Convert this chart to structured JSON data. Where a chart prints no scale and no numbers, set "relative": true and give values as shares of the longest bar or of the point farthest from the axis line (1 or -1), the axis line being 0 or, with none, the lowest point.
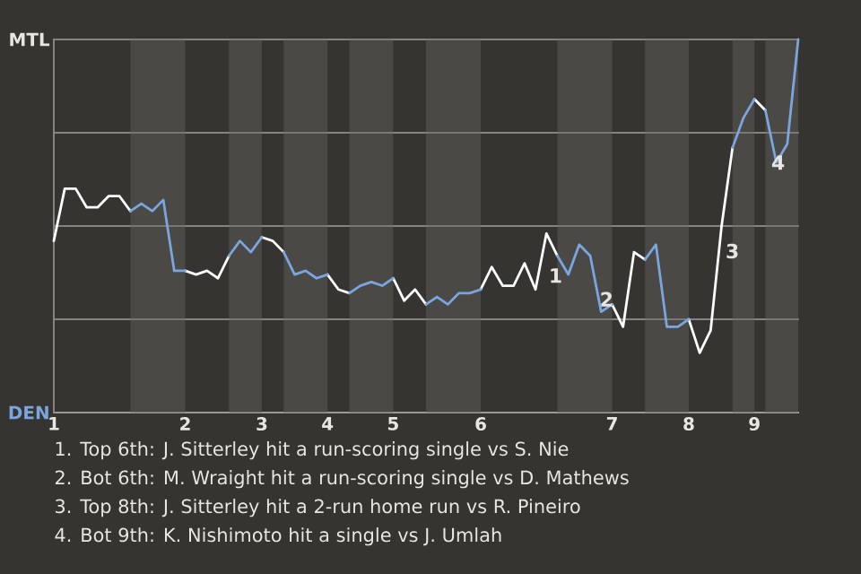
{
  "chart_data": {
    "type": "line",
    "relative": true,
    "grid": "y",
    "categories": [
      "1",
      null,
      null,
      null,
      null,
      null,
      null,
      null,
      null,
      null,
      null,
      null,
      "2",
      null,
      null,
      null,
      null,
      null,
      null,
      "3",
      null,
      null,
      null,
      null,
      null,
      "4",
      null,
      null,
      null,
      null,
      null,
      "5",
      null,
      null,
      null,
      null,
      null,
      null,
      null,
      "6",
      null,
      null,
      null,
      null,
      null,
      null,
      null,
      null,
      null,
      null,
      null,
      "7",
      null,
      null,
      null,
      null,
      null,
      null,
      "8",
      null,
      null,
      null,
      null,
      null,
      "9",
      null,
      null,
      null,
      null
    ],
    "series": [
      {
        "color": "#ffffff",
        "values": [
          0.46,
          0.6,
          0.6,
          0.55,
          0.55,
          0.58,
          0.58,
          0.54,
          null,
          null,
          null,
          null,
          0.38,
          0.37,
          0.38,
          0.36,
          0.42,
          null,
          null,
          0.47,
          0.46,
          0.43,
          null,
          null,
          null,
          0.37,
          0.33,
          0.32,
          null,
          null,
          null,
          0.36,
          0.3,
          0.33,
          0.29,
          null,
          null,
          null,
          null,
          0.33,
          0.39,
          0.34,
          0.34,
          0.4,
          0.33,
          0.48,
          0.42,
          null,
          null,
          null,
          null,
          0.29,
          0.23,
          0.43,
          0.41,
          null,
          null,
          null,
          0.25,
          0.16,
          0.22,
          0.5,
          0.71,
          null,
          0.84,
          0.81,
          null,
          null,
          null
        ]
      },
      {
        "color": "#7aa6e0",
        "values": [
          null,
          null,
          null,
          null,
          null,
          null,
          null,
          0.54,
          0.56,
          0.54,
          0.57,
          0.38,
          0.38,
          null,
          null,
          null,
          0.42,
          0.46,
          0.43,
          0.47,
          null,
          0.43,
          0.37,
          0.38,
          0.36,
          0.37,
          null,
          0.32,
          0.34,
          0.35,
          0.34,
          0.36,
          null,
          null,
          0.29,
          0.31,
          0.29,
          0.32,
          0.32,
          0.33,
          null,
          null,
          null,
          null,
          null,
          null,
          0.42,
          0.37,
          0.45,
          0.42,
          0.27,
          0.29,
          null,
          null,
          0.41,
          0.45,
          0.23,
          0.23,
          0.25,
          null,
          null,
          null,
          0.71,
          0.79,
          0.84,
          null,
          null,
          null,
          null
        ]
      },
      {
        "color": "#7aa6e0",
        "values": [
          null,
          null,
          null,
          null,
          null,
          null,
          null,
          null,
          null,
          null,
          null,
          null,
          null,
          null,
          null,
          null,
          null,
          null,
          null,
          null,
          null,
          null,
          null,
          null,
          null,
          null,
          null,
          null,
          null,
          null,
          null,
          null,
          null,
          null,
          null,
          null,
          null,
          null,
          null,
          null,
          null,
          null,
          null,
          null,
          null,
          null,
          null,
          null,
          null,
          null,
          null,
          null,
          null,
          null,
          null,
          null,
          null,
          null,
          null,
          null,
          null,
          null,
          null,
          null,
          null,
          0.81,
          0.67,
          0.72,
          1.0
        ]
      }
    ],
    "annotations": [
      "MTL",
      "DEN",
      "1",
      "2",
      "3",
      "4",
      "1. Top 6th: J. Sitterley hit a run-scoring single vs S. Nie",
      "2. Bot 6th: M. Wraight hit a run-scoring single vs D. Mathews",
      "3. Top 8th: J. Sitterley hit a 2-run home run vs R. Pineiro",
      "4. Bot 9th: K. Nishimoto hit a single vs J. Umlah"
    ]
  }
}
